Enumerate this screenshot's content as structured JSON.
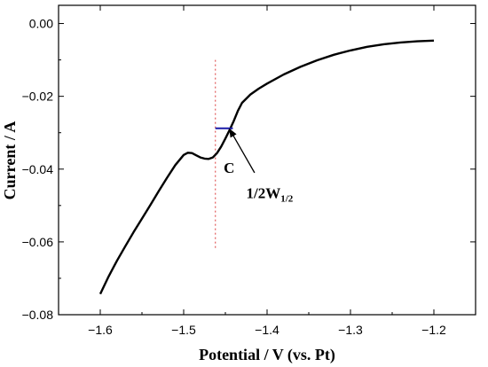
{
  "chart_data": {
    "type": "line",
    "title": "",
    "xlabel": "Potential / V (vs. Pt)",
    "ylabel": "Current / A",
    "xlim": [
      -1.65,
      -1.15
    ],
    "ylim": [
      -0.08,
      0.005
    ],
    "x_ticks": [
      -1.6,
      -1.5,
      -1.4,
      -1.3,
      -1.2
    ],
    "x_tick_labels": [
      "-1.6",
      "-1.5",
      "-1.4",
      "-1.3",
      "-1.2"
    ],
    "y_ticks": [
      0.0,
      -0.02,
      -0.04,
      -0.06,
      -0.08
    ],
    "y_tick_labels": [
      "0.00",
      "-0.02",
      "-0.04",
      "-0.06",
      "-0.08"
    ],
    "grid": false,
    "legend": "none",
    "series": [
      {
        "color": "#000000",
        "x": [
          -1.6,
          -1.59,
          -1.58,
          -1.57,
          -1.56,
          -1.55,
          -1.54,
          -1.53,
          -1.52,
          -1.51,
          -1.5,
          -1.495,
          -1.49,
          -1.485,
          -1.48,
          -1.475,
          -1.47,
          -1.465,
          -1.46,
          -1.455,
          -1.45,
          -1.445,
          -1.44,
          -1.435,
          -1.43,
          -1.42,
          -1.41,
          -1.4,
          -1.38,
          -1.36,
          -1.34,
          -1.32,
          -1.3,
          -1.28,
          -1.26,
          -1.24,
          -1.22,
          -1.2
        ],
        "y": [
          -0.0743,
          -0.0695,
          -0.0652,
          -0.0612,
          -0.0573,
          -0.0536,
          -0.0499,
          -0.0461,
          -0.0424,
          -0.0389,
          -0.0361,
          -0.0355,
          -0.0356,
          -0.0362,
          -0.0368,
          -0.0371,
          -0.0372,
          -0.0368,
          -0.0356,
          -0.0338,
          -0.0316,
          -0.0293,
          -0.0268,
          -0.024,
          -0.0218,
          -0.0195,
          -0.0179,
          -0.0165,
          -0.014,
          -0.0119,
          -0.0101,
          -0.0086,
          -0.0074,
          -0.0064,
          -0.0057,
          -0.0052,
          -0.0049,
          -0.0047
        ]
      }
    ],
    "annotations": {
      "vertical_line": {
        "x": -1.462,
        "y_range": [
          -0.062,
          -0.01
        ],
        "color": "#e05a5a",
        "style": "dotted"
      },
      "half_width_segment": {
        "x_range": [
          -1.462,
          -1.441
        ],
        "y": -0.0288,
        "color": "#1a1aa8"
      },
      "point_label": {
        "text": "C",
        "x": -1.452,
        "y": -0.041
      },
      "width_label": {
        "main": "1/2W",
        "sub": "1/2",
        "x": -1.425,
        "y": -0.048
      },
      "arrow": {
        "from": [
          -1.415,
          -0.041
        ],
        "to": [
          -1.445,
          -0.029
        ]
      }
    }
  }
}
